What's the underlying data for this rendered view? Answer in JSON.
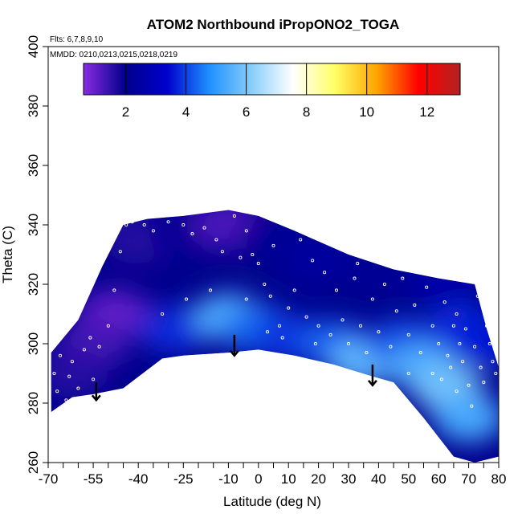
{
  "chart_data": {
    "type": "heatmap",
    "title": "ATOM2 Northbound iPropONO2_TOGA",
    "annotations": [
      "Flts: 6,7,8,9,10",
      "MMDD: 0210,0213,0215,0218,0219"
    ],
    "xlabel": "Latitude (deg N)",
    "ylabel": "Theta (C)",
    "xlim": [
      -70,
      80
    ],
    "ylim": [
      260,
      400
    ],
    "x_ticks": [
      -70,
      -55,
      -40,
      -25,
      -10,
      0,
      10,
      20,
      30,
      40,
      50,
      60,
      70,
      80
    ],
    "x_minor_step": 5,
    "y_ticks": [
      260,
      280,
      300,
      320,
      340,
      360,
      380,
      400
    ],
    "colorbar": {
      "range": [
        0.6,
        13.1
      ],
      "ticks": [
        2,
        4,
        6,
        8,
        10,
        12
      ],
      "colors": [
        "#8a2be2",
        "#00008b",
        "#0000cd",
        "#1e90ff",
        "#87cefa",
        "#ffffff",
        "#ffff66",
        "#ffa500",
        "#ff0000",
        "#b22222"
      ]
    },
    "region": {
      "top": [
        [
          -69,
          297
        ],
        [
          -60,
          308
        ],
        [
          -52,
          326
        ],
        [
          -45,
          340
        ],
        [
          -37,
          342
        ],
        [
          -25,
          343
        ],
        [
          -10,
          345
        ],
        [
          0,
          343
        ],
        [
          12,
          338
        ],
        [
          30,
          330
        ],
        [
          45,
          325
        ],
        [
          60,
          322
        ],
        [
          72,
          320
        ],
        [
          76,
          305
        ],
        [
          80,
          292
        ]
      ],
      "bottom": [
        [
          80,
          262
        ],
        [
          72,
          260
        ],
        [
          65,
          262
        ],
        [
          55,
          275
        ],
        [
          45,
          287
        ],
        [
          38,
          289
        ],
        [
          25,
          293
        ],
        [
          12,
          296
        ],
        [
          0,
          298
        ],
        [
          -10,
          297
        ],
        [
          -25,
          296
        ],
        [
          -32,
          295
        ],
        [
          -45,
          285
        ],
        [
          -55,
          283
        ],
        [
          -62,
          282
        ],
        [
          -69,
          277
        ]
      ]
    },
    "field": [
      {
        "x": -48,
        "y": 310,
        "value": 1.0
      },
      {
        "x": -55,
        "y": 300,
        "value": 1.3
      },
      {
        "x": -62,
        "y": 290,
        "value": 1.6
      },
      {
        "x": -40,
        "y": 335,
        "value": 1.6
      },
      {
        "x": -25,
        "y": 338,
        "value": 2.2
      },
      {
        "x": -10,
        "y": 340,
        "value": 1.2
      },
      {
        "x": 5,
        "y": 335,
        "value": 2.2
      },
      {
        "x": 20,
        "y": 328,
        "value": 2.4
      },
      {
        "x": 40,
        "y": 325,
        "value": 2.2
      },
      {
        "x": 62,
        "y": 320,
        "value": 2.6
      },
      {
        "x": -28,
        "y": 305,
        "value": 3.8
      },
      {
        "x": -10,
        "y": 309,
        "value": 5.4
      },
      {
        "x": 0,
        "y": 305,
        "value": 4.4
      },
      {
        "x": 10,
        "y": 302,
        "value": 3.9
      },
      {
        "x": 25,
        "y": 300,
        "value": 4.3
      },
      {
        "x": 35,
        "y": 294,
        "value": 5.6
      },
      {
        "x": 48,
        "y": 300,
        "value": 4.2
      },
      {
        "x": 55,
        "y": 292,
        "value": 5.4
      },
      {
        "x": 63,
        "y": 285,
        "value": 5.9
      },
      {
        "x": 68,
        "y": 305,
        "value": 3.8
      },
      {
        "x": 70,
        "y": 275,
        "value": 5.3
      },
      {
        "x": 75,
        "y": 300,
        "value": 3.6
      }
    ],
    "arrows": [
      {
        "x": -54,
        "y_top": 287,
        "y_tip": 281
      },
      {
        "x": -8,
        "y_top": 303,
        "y_tip": 296
      },
      {
        "x": 38,
        "y_top": 293,
        "y_tip": 286
      }
    ],
    "obs_points": [
      [
        -68,
        290
      ],
      [
        -67,
        284
      ],
      [
        -66,
        296
      ],
      [
        -64,
        281
      ],
      [
        -63,
        289
      ],
      [
        -62,
        294
      ],
      [
        -60,
        285
      ],
      [
        -58,
        298
      ],
      [
        -56,
        302
      ],
      [
        -55,
        288
      ],
      [
        -53,
        299
      ],
      [
        -50,
        306
      ],
      [
        -48,
        318
      ],
      [
        -46,
        331
      ],
      [
        -44,
        340
      ],
      [
        -42,
        341
      ],
      [
        -38,
        340
      ],
      [
        -35,
        338
      ],
      [
        -30,
        341
      ],
      [
        -25,
        340
      ],
      [
        -22,
        337
      ],
      [
        -18,
        339
      ],
      [
        -14,
        335
      ],
      [
        -12,
        331
      ],
      [
        -8,
        343
      ],
      [
        -6,
        329
      ],
      [
        -4,
        338
      ],
      [
        -2,
        330
      ],
      [
        0,
        327
      ],
      [
        2,
        320
      ],
      [
        4,
        316
      ],
      [
        5,
        333
      ],
      [
        7,
        306
      ],
      [
        8,
        302
      ],
      [
        10,
        312
      ],
      [
        12,
        318
      ],
      [
        14,
        335
      ],
      [
        16,
        309
      ],
      [
        18,
        328
      ],
      [
        20,
        306
      ],
      [
        22,
        324
      ],
      [
        24,
        303
      ],
      [
        26,
        318
      ],
      [
        28,
        308
      ],
      [
        30,
        300
      ],
      [
        32,
        322
      ],
      [
        34,
        306
      ],
      [
        36,
        297
      ],
      [
        38,
        315
      ],
      [
        40,
        304
      ],
      [
        42,
        320
      ],
      [
        44,
        299
      ],
      [
        46,
        311
      ],
      [
        48,
        322
      ],
      [
        50,
        303
      ],
      [
        52,
        313
      ],
      [
        54,
        297
      ],
      [
        56,
        319
      ],
      [
        58,
        306
      ],
      [
        60,
        300
      ],
      [
        61,
        288
      ],
      [
        62,
        314
      ],
      [
        63,
        296
      ],
      [
        64,
        292
      ],
      [
        65,
        306
      ],
      [
        66,
        310
      ],
      [
        67,
        300
      ],
      [
        68,
        294
      ],
      [
        69,
        305
      ],
      [
        70,
        286
      ],
      [
        71,
        279
      ],
      [
        72,
        299
      ],
      [
        73,
        316
      ],
      [
        74,
        292
      ],
      [
        75,
        287
      ],
      [
        76,
        306
      ],
      [
        77,
        300
      ],
      [
        78,
        294
      ],
      [
        79,
        290
      ],
      [
        -61,
        278
      ],
      [
        -24,
        315
      ],
      [
        -16,
        318
      ],
      [
        -32,
        310
      ],
      [
        -4,
        315
      ],
      [
        33,
        327
      ],
      [
        3,
        304
      ],
      [
        19,
        300
      ],
      [
        58,
        290
      ],
      [
        66,
        284
      ],
      [
        50,
        290
      ]
    ]
  }
}
